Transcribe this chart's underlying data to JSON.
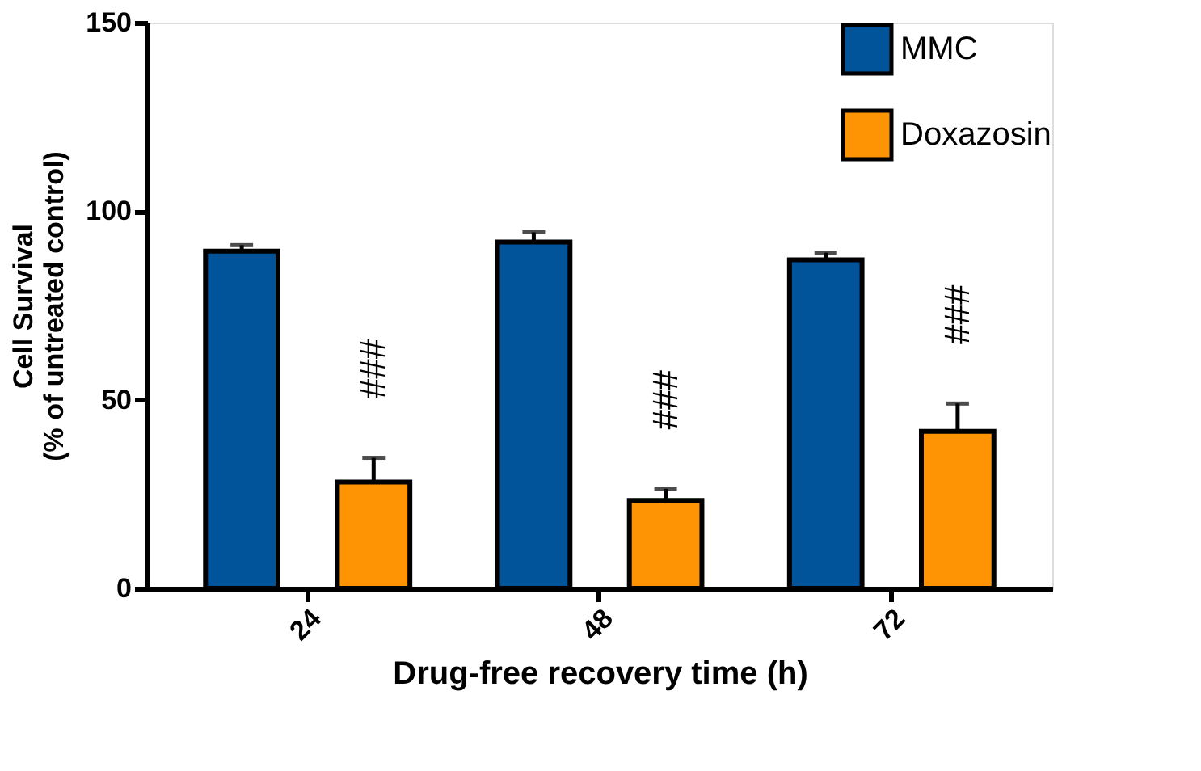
{
  "chart_data": {
    "type": "bar",
    "xlabel": "Drug-free recovery time (h)",
    "ylabel": "Cell Survival\n(% of untreated control)",
    "categories": [
      "24",
      "48",
      "72"
    ],
    "series": [
      {
        "name": "MMC",
        "color": "#01539a",
        "values": [
          89.4,
          91.8,
          87.1
        ],
        "errors": [
          [
            89.4,
            91.0
          ],
          [
            91.8,
            94.4
          ],
          [
            87.1,
            89.0
          ]
        ]
      },
      {
        "name": "Doxazosin",
        "color": "#fe9403",
        "values": [
          28.2,
          23.3,
          41.6
        ],
        "errors": [
          [
            28.2,
            34.6
          ],
          [
            23.3,
            26.4
          ],
          [
            41.6,
            49.0
          ]
        ]
      }
    ],
    "ylim": [
      0,
      150
    ],
    "yticks": [
      0,
      50,
      100,
      150
    ],
    "grid": false,
    "legend": "top right",
    "annotations": [
      "###",
      "###",
      "###"
    ]
  }
}
